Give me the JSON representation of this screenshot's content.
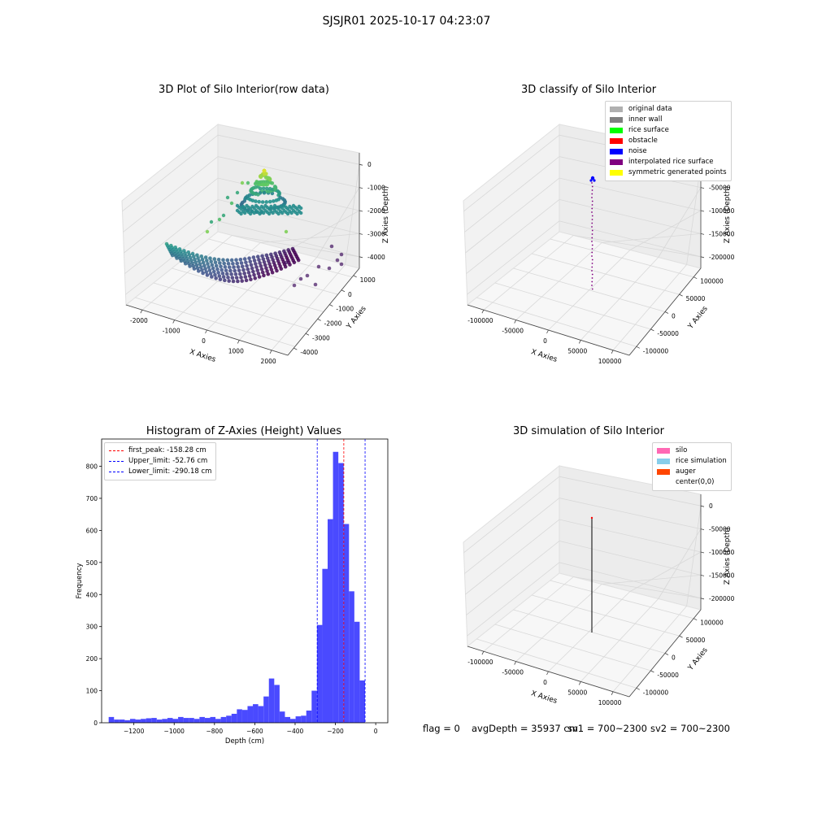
{
  "figure": {
    "suptitle": "SJSJR01 2025-10-17 04:23:07",
    "footer": {
      "flag": "flag = 0",
      "avg_depth": "avgDepth = 35937 cm",
      "sv1": "sv1 = 700~2300",
      "sv2": "sv2 = 700~2300"
    }
  },
  "chart_data": [
    {
      "type": "scatter",
      "projection": "3d",
      "title": "3D Plot of Silo Interior(row data)",
      "xlabel": "X Axies",
      "ylabel": "Y Axies",
      "zlabel": "Z Axies (Depth)",
      "x_ticks": [
        "-2000",
        "-1000",
        "0",
        "1000",
        "2000"
      ],
      "y_ticks": [
        "1000",
        "0",
        "-1000",
        "-2000",
        "-3000",
        "-4000"
      ],
      "z_ticks": [
        "0",
        "-1000",
        "-2000",
        "-3000",
        "-4000"
      ],
      "colormap": "viridis"
    },
    {
      "type": "scatter",
      "projection": "3d",
      "title": "3D classify of Silo Interior",
      "xlabel": "X Axies",
      "ylabel": "Y Axies",
      "zlabel": "Z Axies (Depth)",
      "x_ticks": [
        "-100000",
        "-50000",
        "0",
        "50000",
        "100000"
      ],
      "y_ticks": [
        "100000",
        "50000",
        "0",
        "-50000",
        "-100000"
      ],
      "z_ticks": [
        "0",
        "-50000",
        "-100000",
        "-150000",
        "-200000"
      ],
      "legend": [
        {
          "label": "original data",
          "color": "#b0b0b0"
        },
        {
          "label": "inner wall",
          "color": "#808080"
        },
        {
          "label": "rice surface",
          "color": "#00ff00"
        },
        {
          "label": "obstacle",
          "color": "#ff0000"
        },
        {
          "label": "noise",
          "color": "#0000ff"
        },
        {
          "label": "interpolated rice surface",
          "color": "#800080"
        },
        {
          "label": "symmetric generated points",
          "color": "#ffff00"
        }
      ]
    },
    {
      "type": "bar",
      "title": "Histogram of Z-Axies (Height) Values",
      "xlabel": "Depth (cm)",
      "ylabel": "Frequency",
      "xlim": [
        -1360,
        60
      ],
      "ylim": [
        0,
        885
      ],
      "x_ticks": [
        -1200,
        -1000,
        -800,
        -600,
        -400,
        -200,
        0
      ],
      "y_ticks": [
        0,
        100,
        200,
        300,
        400,
        500,
        600,
        700,
        800
      ],
      "bar_color": "#4040ff",
      "bin_width": 26.5,
      "bin_start": -1325,
      "values": [
        18,
        10,
        10,
        8,
        12,
        10,
        12,
        14,
        15,
        10,
        12,
        15,
        12,
        18,
        15,
        15,
        12,
        18,
        15,
        18,
        12,
        18,
        22,
        28,
        42,
        40,
        52,
        58,
        52,
        82,
        138,
        118,
        35,
        18,
        12,
        20,
        22,
        38,
        100,
        305,
        480,
        635,
        845,
        810,
        620,
        410,
        315,
        132
      ],
      "vlines": [
        {
          "x": -158.28,
          "label": "first_peak: -158.28 cm",
          "color": "#ff0000"
        },
        {
          "x": -52.76,
          "label": "Upper_limit: -52.76 cm",
          "color": "#0000ff"
        },
        {
          "x": -290.18,
          "label": "Lower_limit: -290.18 cm",
          "color": "#0000ff"
        }
      ]
    },
    {
      "type": "line",
      "projection": "3d",
      "title": "3D simulation of Silo Interior",
      "xlabel": "X Axies",
      "ylabel": "Y Axies",
      "zlabel": "Z Axies (Depth)",
      "x_ticks": [
        "-100000",
        "-50000",
        "0",
        "50000",
        "100000"
      ],
      "y_ticks": [
        "100000",
        "50000",
        "0",
        "-50000",
        "-100000"
      ],
      "z_ticks": [
        "0",
        "-50000",
        "-100000",
        "-150000",
        "-200000"
      ],
      "legend": [
        {
          "label": "silo",
          "color": "#ff69b4"
        },
        {
          "label": "rice simulation",
          "color": "#87ceeb"
        },
        {
          "label": "auger",
          "color": "#ff4500"
        },
        {
          "label": "center(0,0)",
          "color": ""
        }
      ]
    }
  ]
}
